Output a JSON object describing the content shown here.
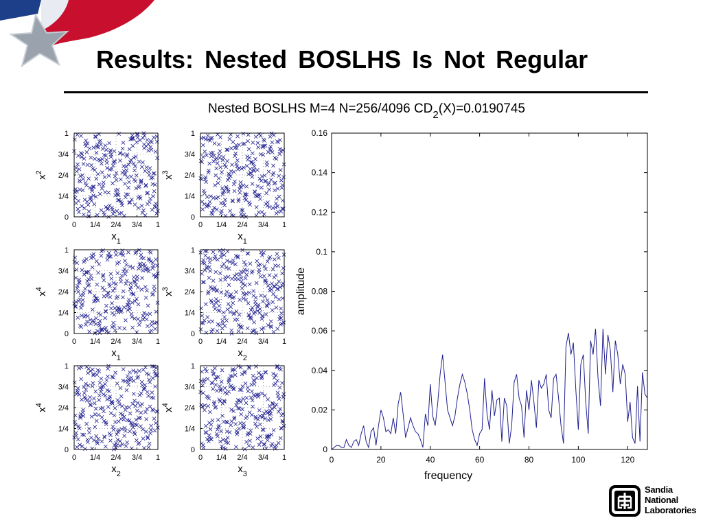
{
  "slide": {
    "title": "Results:  Nested  BOSLHS  Is  Not  Regular"
  },
  "logo": {
    "lines": [
      "Sandia",
      "National",
      "Laboratories"
    ]
  },
  "colors": {
    "marker": "#1f1f8f",
    "line": "#1f1f8f",
    "axis": "#000000",
    "flag_red": "#c8102e",
    "flag_blue": "#1d3f8a",
    "star": "#9aa3ad"
  },
  "chart_data": [
    {
      "type": "scatter",
      "grid_title": "Nested BOSLHS M=4 N=256/4096 CD",
      "grid_title_subscript": "2",
      "grid_title_suffix": "(X)=0.0190745",
      "tick_labels": [
        "0",
        "1/4",
        "2/4",
        "3/4",
        "1"
      ],
      "xlim": [
        0,
        1
      ],
      "ylim": [
        0,
        1
      ],
      "grid": "dotted at quarters",
      "marker": "x",
      "n_points": 256,
      "panels": [
        {
          "row": 1,
          "col": 1,
          "xlabel": "x",
          "xsub": "1",
          "ylabel": "x",
          "ysub": "2"
        },
        {
          "row": 1,
          "col": 2,
          "xlabel": "x",
          "xsub": "1",
          "ylabel": "x",
          "ysub": "3"
        },
        {
          "row": 2,
          "col": 1,
          "xlabel": "x",
          "xsub": "1",
          "ylabel": "x",
          "ysub": "4"
        },
        {
          "row": 2,
          "col": 2,
          "xlabel": "x",
          "xsub": "2",
          "ylabel": "x",
          "ysub": "3"
        },
        {
          "row": 3,
          "col": 1,
          "xlabel": "x",
          "xsub": "2",
          "ylabel": "x",
          "ysub": "4"
        },
        {
          "row": 3,
          "col": 2,
          "xlabel": "x",
          "xsub": "3",
          "ylabel": "x",
          "ysub": "4"
        }
      ]
    },
    {
      "type": "line",
      "xlabel": "frequency",
      "ylabel": "amplitude",
      "xlim": [
        0,
        128
      ],
      "ylim": [
        0,
        0.16
      ],
      "xticks": [
        0,
        20,
        40,
        60,
        80,
        100,
        120
      ],
      "yticks": [
        0,
        0.02,
        0.04,
        0.06,
        0.08,
        0.1,
        0.12,
        0.14,
        0.16
      ],
      "ytick_labels": [
        "0",
        "0.02",
        "0.04",
        "0.06",
        "0.08",
        "0.1",
        "0.12",
        "0.14",
        "0.16"
      ],
      "x": [
        0,
        1,
        2,
        3,
        4,
        5,
        6,
        7,
        8,
        9,
        10,
        11,
        12,
        13,
        14,
        15,
        16,
        17,
        18,
        19,
        20,
        21,
        22,
        23,
        24,
        25,
        26,
        27,
        28,
        29,
        30,
        31,
        32,
        33,
        34,
        35,
        36,
        37,
        38,
        39,
        40,
        41,
        42,
        43,
        44,
        45,
        46,
        47,
        48,
        49,
        50,
        51,
        52,
        53,
        54,
        55,
        56,
        57,
        58,
        59,
        60,
        61,
        62,
        63,
        64,
        65,
        66,
        67,
        68,
        69,
        70,
        71,
        72,
        73,
        74,
        75,
        76,
        77,
        78,
        79,
        80,
        81,
        82,
        83,
        84,
        85,
        86,
        87,
        88,
        89,
        90,
        91,
        92,
        93,
        94,
        95,
        96,
        97,
        98,
        99,
        100,
        101,
        102,
        103,
        104,
        105,
        106,
        107,
        108,
        109,
        110,
        111,
        112,
        113,
        114,
        115,
        116,
        117,
        118,
        119,
        120,
        121,
        122,
        123,
        124,
        125,
        126,
        127,
        128
      ],
      "y": [
        0.0,
        0.001,
        0.002,
        0.002,
        0.001,
        0.001,
        0.005,
        0.002,
        0.001,
        0.004,
        0.005,
        0.002,
        0.008,
        0.012,
        0.004,
        0.001,
        0.009,
        0.011,
        0.002,
        0.012,
        0.02,
        0.016,
        0.009,
        0.01,
        0.008,
        0.016,
        0.008,
        0.023,
        0.029,
        0.018,
        0.006,
        0.011,
        0.016,
        0.012,
        0.009,
        0.008,
        0.005,
        0.001,
        0.018,
        0.012,
        0.033,
        0.017,
        0.012,
        0.023,
        0.038,
        0.048,
        0.034,
        0.02,
        0.016,
        0.012,
        0.017,
        0.026,
        0.033,
        0.038,
        0.034,
        0.028,
        0.02,
        0.01,
        0.005,
        0.002,
        0.008,
        0.01,
        0.036,
        0.018,
        0.01,
        0.03,
        0.017,
        0.025,
        0.026,
        0.004,
        0.026,
        0.022,
        0.003,
        0.012,
        0.034,
        0.038,
        0.026,
        0.022,
        0.006,
        0.03,
        0.02,
        0.035,
        0.024,
        0.011,
        0.035,
        0.031,
        0.033,
        0.038,
        0.02,
        0.016,
        0.036,
        0.038,
        0.026,
        0.012,
        0.003,
        0.052,
        0.059,
        0.048,
        0.054,
        0.03,
        0.01,
        0.043,
        0.048,
        0.024,
        0.008,
        0.055,
        0.048,
        0.061,
        0.036,
        0.022,
        0.061,
        0.038,
        0.058,
        0.05,
        0.029,
        0.055,
        0.048,
        0.033,
        0.043,
        0.038,
        0.014,
        0.024,
        0.006,
        0.003,
        0.032,
        0.004,
        0.039,
        0.028,
        0.026
      ]
    }
  ]
}
